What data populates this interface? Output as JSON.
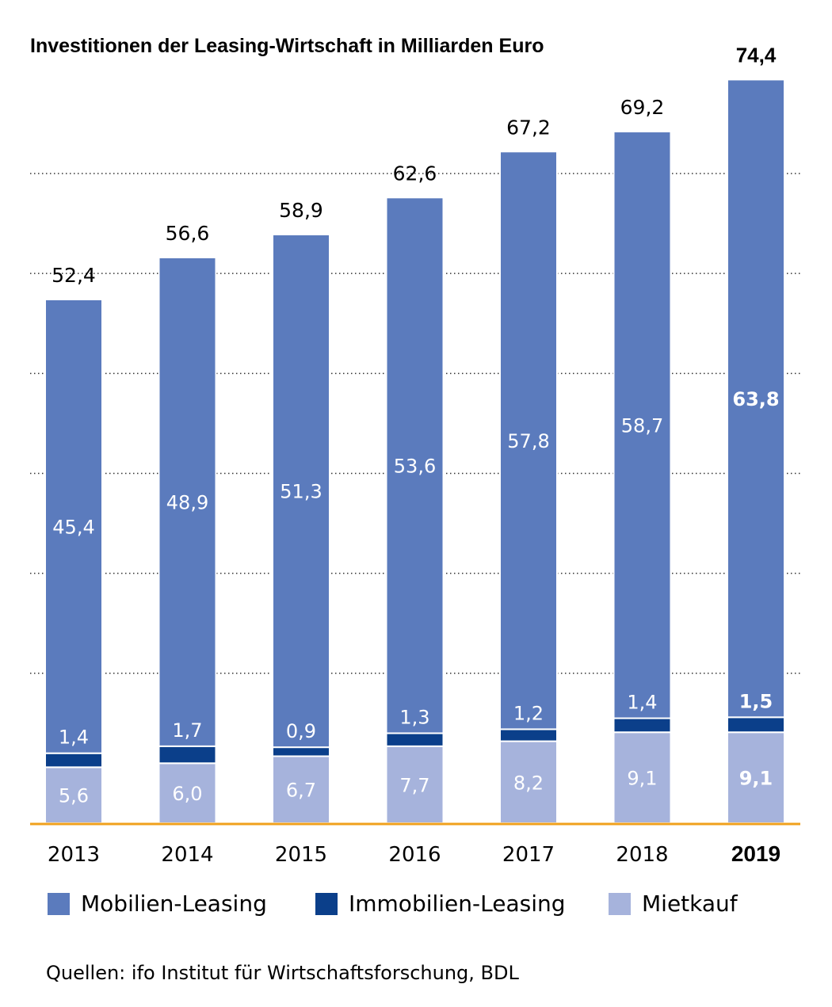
{
  "chart_data": {
    "type": "bar",
    "stacked": true,
    "title": "Investitionen der Leasing-Wirtschaft in Milliarden Euro",
    "categories": [
      "2013",
      "2014",
      "2015",
      "2016",
      "2017",
      "2018",
      "2019"
    ],
    "highlight_category": "2019",
    "series": [
      {
        "name": "Mietkauf",
        "values": [
          5.6,
          6.0,
          6.7,
          7.7,
          8.2,
          9.1,
          9.1
        ],
        "labels": [
          "5,6",
          "6,0",
          "6,7",
          "7,7",
          "8,2",
          "9,1",
          "9,1"
        ]
      },
      {
        "name": "Immobilien-Leasing",
        "values": [
          1.4,
          1.7,
          0.9,
          1.3,
          1.2,
          1.4,
          1.5
        ],
        "labels": [
          "1,4",
          "1,7",
          "0,9",
          "1,3",
          "1,2",
          "1,4",
          "1,5"
        ]
      },
      {
        "name": "Mobilien-Leasing",
        "values": [
          45.4,
          48.9,
          51.3,
          53.6,
          57.8,
          58.7,
          63.8
        ],
        "labels": [
          "45,4",
          "48,9",
          "51,3",
          "53,6",
          "57,8",
          "58,7",
          "63,8"
        ]
      }
    ],
    "totals": [
      52.4,
      56.6,
      58.9,
      62.6,
      67.2,
      69.2,
      74.4
    ],
    "total_labels": [
      "52,4",
      "56,6",
      "58,9",
      "62,6",
      "67,2",
      "69,2",
      "74,4"
    ],
    "ylim": [
      0,
      80
    ],
    "grid": true,
    "legend_position": "bottom",
    "source": "Quellen: ifo Institut für Wirtschaftsforschung, BDL"
  },
  "colors": {
    "Mobilien-Leasing": "#5b7bbd",
    "Immobilien-Leasing": "#0b3f8a",
    "Mietkauf": "#a6b3dc",
    "baseline": "#f0a11c",
    "grid": "#333333"
  },
  "legend": [
    {
      "label": "Mobilien-Leasing",
      "color": "#5b7bbd"
    },
    {
      "label": "Immobilien-Leasing",
      "color": "#0b3f8a"
    },
    {
      "label": "Mietkauf",
      "color": "#a6b3dc"
    }
  ]
}
